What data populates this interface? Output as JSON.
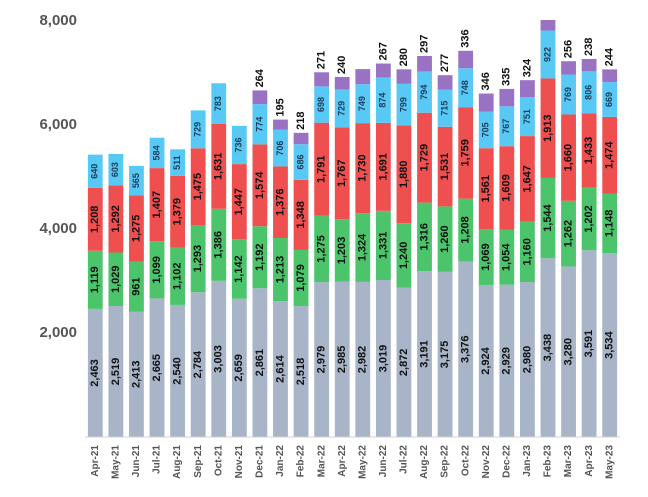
{
  "chart_data": {
    "type": "stacked_bar",
    "categories": [
      "Apr-21",
      "May-21",
      "Jun-21",
      "Jul-21",
      "Aug-21",
      "Sep-21",
      "Oct-21",
      "Nov-21",
      "Dec-21",
      "Jan-22",
      "Feb-22",
      "Mar-22",
      "Apr-22",
      "May-22",
      "Jun-22",
      "Jul-22",
      "Aug-22",
      "Sep-22",
      "Oct-22",
      "Nov-22",
      "Dec-22",
      "Jan-23",
      "Feb-23",
      "Mar-23",
      "Apr-23",
      "May-23"
    ],
    "series": [
      {
        "color": "#a8b4c8",
        "values": [
          2463,
          2519,
          2413,
          2665,
          2540,
          2784,
          3003,
          2659,
          2861,
          2614,
          2518,
          2979,
          2985,
          2982,
          3019,
          2872,
          3191,
          3175,
          3376,
          2924,
          2929,
          2980,
          3438,
          3280,
          3591,
          3534
        ],
        "value_labels": [
          "2,463",
          "2,519",
          "2,413",
          "2,665",
          "2,540",
          "2,784",
          "3,003",
          "2,659",
          "2,861",
          "2,614",
          "2,518",
          "2,979",
          "2,985",
          "2,982",
          "3,019",
          "2,872",
          "3,191",
          "3,175",
          "3,376",
          "2,924",
          "2,929",
          "2,980",
          "3,438",
          "3,280",
          "3,591",
          "3,534"
        ]
      },
      {
        "color": "#4cc46c",
        "values": [
          1119,
          1029,
          961,
          1099,
          1102,
          1293,
          1386,
          1142,
          1192,
          1213,
          1079,
          1275,
          1203,
          1324,
          1331,
          1240,
          1316,
          1260,
          1208,
          1069,
          1054,
          1160,
          1544,
          1262,
          1202,
          1148
        ],
        "value_labels": [
          "1,119",
          "1,029",
          "961",
          "1,099",
          "1,102",
          "1,293",
          "1,386",
          "1,142",
          "1,192",
          "1,213",
          "1,079",
          "1,275",
          "1,203",
          "1,324",
          "1,331",
          "1,240",
          "1,316",
          "1,260",
          "1,208",
          "1,069",
          "1,054",
          "1,160",
          "1,544",
          "1,262",
          "1,202",
          "1,148"
        ]
      },
      {
        "color": "#f04f4f",
        "values": [
          1208,
          1292,
          1275,
          1407,
          1379,
          1475,
          1631,
          1447,
          1574,
          1376,
          1348,
          1791,
          1767,
          1730,
          1691,
          1880,
          1729,
          1531,
          1759,
          1561,
          1609,
          1647,
          1913,
          1660,
          1433,
          1474
        ],
        "value_labels": [
          "1,208",
          "1,292",
          "1,275",
          "1,407",
          "1,379",
          "1,475",
          "1,631",
          "1,447",
          "1,574",
          "1,376",
          "1,348",
          "1,791",
          "1,767",
          "1,730",
          "1,691",
          "1,880",
          "1,729",
          "1,531",
          "1,759",
          "1,561",
          "1,609",
          "1,647",
          "1,913",
          "1,660",
          "1,433",
          "1,474"
        ]
      },
      {
        "color": "#58c9f4",
        "values": [
          640,
          603,
          565,
          584,
          511,
          729,
          783,
          736,
          774,
          706,
          686,
          698,
          729,
          749,
          874,
          799,
          794,
          715,
          748,
          705,
          767,
          751,
          922,
          769,
          806,
          669
        ]
      },
      {
        "color": "#9a72c4",
        "values": [
          null,
          null,
          null,
          null,
          null,
          null,
          null,
          null,
          264,
          195,
          218,
          271,
          240,
          290,
          267,
          280,
          297,
          277,
          336,
          346,
          335,
          324,
          300,
          256,
          238,
          244
        ],
        "value_labels": [
          null,
          null,
          null,
          null,
          null,
          null,
          null,
          null,
          "264",
          "195",
          "218",
          "271",
          "240",
          null,
          "267",
          "280",
          "297",
          "277",
          "336",
          "346",
          "335",
          "324",
          null,
          "256",
          "238",
          "244"
        ]
      }
    ],
    "ylim": [
      0,
      8000
    ],
    "yticks": [
      {
        "value": 2000,
        "label": "2,000"
      },
      {
        "value": 4000,
        "label": "4,000"
      },
      {
        "value": 6000,
        "label": "6,000"
      },
      {
        "value": 8000,
        "label": "8,000"
      }
    ],
    "grid": false
  }
}
